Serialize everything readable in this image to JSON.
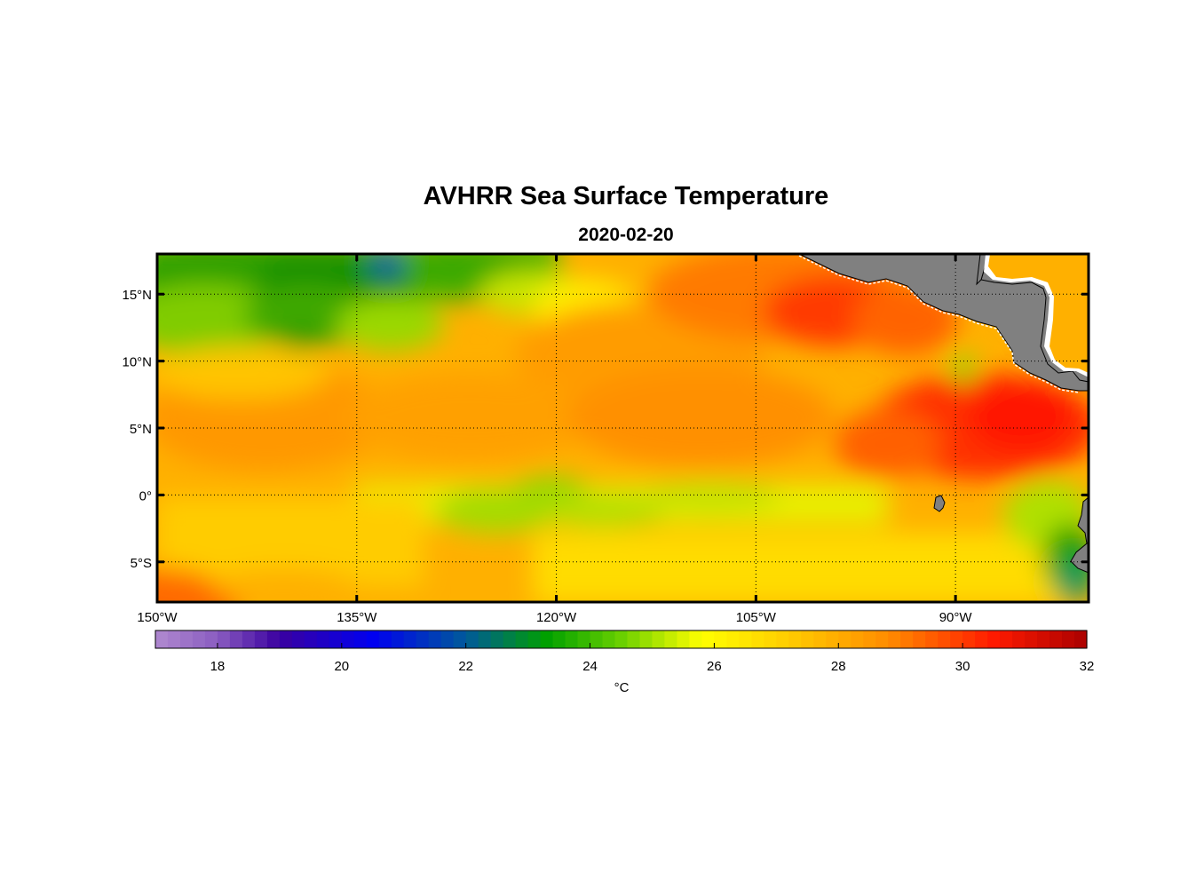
{
  "title": "AVHRR Sea Surface Temperature",
  "subtitle": "2020-02-20",
  "map": {
    "lon_range": [
      -150,
      -80
    ],
    "lat_range": [
      -8,
      18
    ],
    "grid": true,
    "land_color": "#808080",
    "lon_ticks": [
      {
        "value": -150,
        "label": "150°W"
      },
      {
        "value": -135,
        "label": "135°W"
      },
      {
        "value": -120,
        "label": "120°W"
      },
      {
        "value": -105,
        "label": "105°W"
      },
      {
        "value": -90,
        "label": "90°W"
      }
    ],
    "lat_ticks": [
      {
        "value": 15,
        "label": "15°N"
      },
      {
        "value": 10,
        "label": "10°N"
      },
      {
        "value": 5,
        "label": "5°N"
      },
      {
        "value": 0,
        "label": "0°"
      },
      {
        "value": -5,
        "label": "5°S"
      }
    ]
  },
  "colorbar": {
    "range": [
      17,
      32
    ],
    "ticks": [
      18,
      20,
      22,
      24,
      26,
      28,
      30,
      32
    ],
    "unit": "°C",
    "stops": [
      {
        "value": 17.0,
        "color": "#b08ad0"
      },
      {
        "value": 18.0,
        "color": "#8a5cc0"
      },
      {
        "value": 19.0,
        "color": "#3a00a0"
      },
      {
        "value": 20.5,
        "color": "#0000f0"
      },
      {
        "value": 22.0,
        "color": "#005a9a"
      },
      {
        "value": 23.3,
        "color": "#00a000"
      },
      {
        "value": 24.5,
        "color": "#6ad000"
      },
      {
        "value": 25.8,
        "color": "#ffff00"
      },
      {
        "value": 27.2,
        "color": "#ffcc00"
      },
      {
        "value": 28.8,
        "color": "#ff8c00"
      },
      {
        "value": 30.5,
        "color": "#ff1a00"
      },
      {
        "value": 32.0,
        "color": "#aa0000"
      }
    ]
  }
}
